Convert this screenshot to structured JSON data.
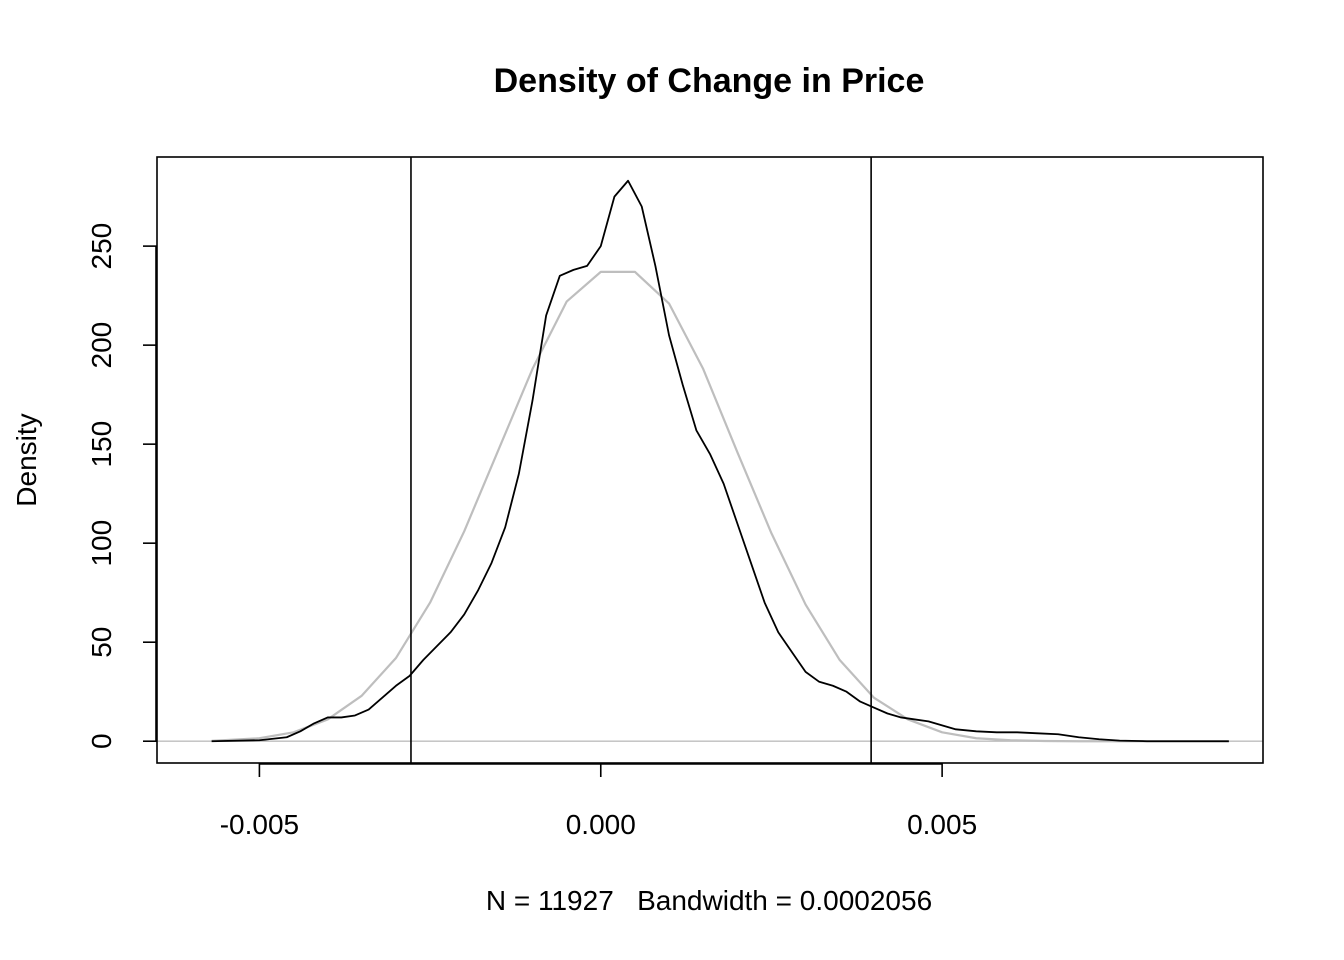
{
  "chart_data": {
    "type": "line",
    "title": "Density of Change in Price",
    "xlabel": "N = 11927   Bandwidth = 0.0002056",
    "ylabel": "Density",
    "xlim": [
      -0.0065,
      0.0097
    ],
    "ylim": [
      -11,
      295
    ],
    "x_ticks": [
      -0.005,
      0.0,
      0.005
    ],
    "x_tick_labels": [
      "-0.005",
      "0.000",
      "0.005"
    ],
    "y_ticks": [
      0,
      50,
      100,
      150,
      200,
      250
    ],
    "y_tick_labels": [
      "0",
      "50",
      "100",
      "150",
      "200",
      "250"
    ],
    "grid": false,
    "legend": "none",
    "vertical_lines": [
      -0.00278,
      0.00396
    ],
    "horizontal_lines": [
      0
    ],
    "colors": {
      "density": "#000000",
      "normal": "#bebebe",
      "baseline": "#bebebe",
      "vlines": "#000000"
    },
    "series": [
      {
        "color": "#000000",
        "x": [
          -0.0057,
          -0.005,
          -0.0046,
          -0.0044,
          -0.0042,
          -0.004,
          -0.0038,
          -0.0036,
          -0.0034,
          -0.0032,
          -0.003,
          -0.0028,
          -0.0026,
          -0.0024,
          -0.0022,
          -0.002,
          -0.0018,
          -0.0016,
          -0.0014,
          -0.0012,
          -0.001,
          -0.0008,
          -0.0006,
          -0.0004,
          -0.0002,
          0.0,
          0.0002,
          0.0004,
          0.0006,
          0.0008,
          0.001,
          0.0012,
          0.0014,
          0.0016,
          0.0018,
          0.002,
          0.0022,
          0.0024,
          0.0026,
          0.0028,
          0.003,
          0.0032,
          0.0034,
          0.0036,
          0.0038,
          0.004,
          0.0042,
          0.0044,
          0.0046,
          0.0048,
          0.005,
          0.0052,
          0.0055,
          0.0058,
          0.0061,
          0.0064,
          0.0067,
          0.007,
          0.0073,
          0.0076,
          0.008,
          0.0085,
          0.0092
        ],
        "y": [
          0,
          0.5,
          2,
          5,
          9,
          12,
          12,
          13,
          16,
          22,
          28,
          33,
          41,
          48,
          55,
          64,
          76,
          90,
          108,
          135,
          172,
          215,
          235,
          238,
          240,
          250,
          275,
          283,
          270,
          240,
          205,
          180,
          157,
          145,
          130,
          110,
          90,
          70,
          55,
          45,
          35,
          30,
          28,
          25,
          20,
          17,
          14,
          12,
          11,
          10,
          8,
          6,
          5,
          4.5,
          4.5,
          4,
          3.5,
          2,
          1,
          0.3,
          0,
          0,
          0
        ]
      },
      {
        "color": "#bebebe",
        "x": [
          -0.0057,
          -0.005,
          -0.0045,
          -0.004,
          -0.0035,
          -0.003,
          -0.0025,
          -0.002,
          -0.0015,
          -0.001,
          -0.0005,
          0.0,
          0.0005,
          0.001,
          0.0015,
          0.002,
          0.0025,
          0.003,
          0.0035,
          0.004,
          0.0045,
          0.005,
          0.0055,
          0.006,
          0.0065,
          0.007,
          0.0075,
          0.008,
          0.0085,
          0.0092
        ],
        "y": [
          0.2,
          1.5,
          4.5,
          11,
          23,
          42,
          70,
          106,
          147,
          188,
          222,
          237,
          237,
          221,
          188,
          146,
          105,
          69,
          41,
          22,
          11,
          4.5,
          1.5,
          0.5,
          0.1,
          0,
          0,
          0,
          0,
          0
        ]
      }
    ]
  }
}
